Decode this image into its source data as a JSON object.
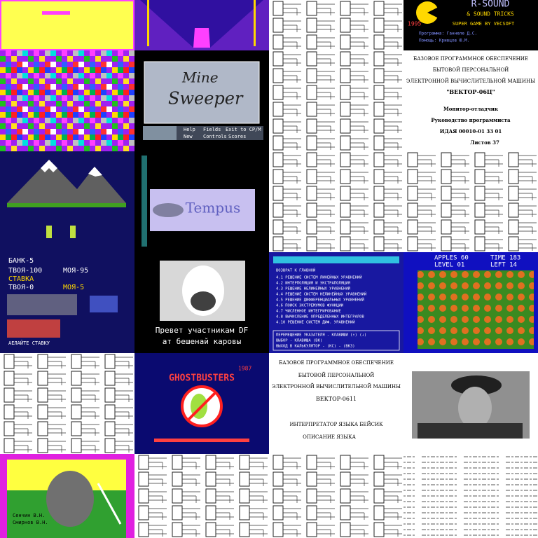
{
  "r_sound": [
    "R-SOUND",
    "& SOUND TRICKS",
    "1995",
    "SUPER GAME BY VECSOFT",
    "Программа: Ганнеле Д.С.",
    "Помощь: Кривцов Ю.М."
  ],
  "minesweeper": [
    "Mine",
    "Sweeper",
    "Help",
    "Fields",
    "Exit to CP/M",
    "New",
    "Controls",
    "Scores"
  ],
  "monitor_doc": [
    "БАЗОВОЕ ПРОГРАММНОЕ ОБЕСПЕЧЕНИЕ",
    "БЫТОВОЙ ПЕРСОНАЛЬНОЙ",
    "ЭЛЕКТРОННОЙ ВЫЧИСЛИТЕЛЬНОЙ МАШИНЫ",
    "\"ВЕКТОР-06Ц\"",
    "Монитор-отладчик",
    "Руководство программиста",
    "ИДАЯ 00010-01 33 01",
    "Листов 37"
  ],
  "tempus": [
    "Tempus"
  ],
  "bank_game": [
    "БАНК-5",
    "ТВОЯ-100",
    "МОЯ-95",
    "СТАВКА",
    "ТВОЯ-0",
    "МОЯ-5",
    "АЕЛАЙТЕ СТАВКУ"
  ],
  "cow": [
    "Превет участникам DF",
    "ат бешенай каровы"
  ],
  "math_menu": [
    "ВОЗВРАТ К ГЛАВНОЙ",
    "4.1 РЕШЕНИЕ СИСТЕМ ЛИНЕЙНЫХ УРАВНЕНИЙ",
    "4.2 ИНТЕРПОЛЯЦИЯ И ЭКСТРАПОЛЯЦИЯ",
    "4.3 РЕШЕНИЕ НЕЛИНЕЙНЫХ УРАВНЕНИЙ",
    "4.4 РЕШЕНИЕ СИСТЕМ НЕЛИНЕЙНЫХ УРАВНЕНИЙ",
    "4.5 РЕШЕНИЕ ДИФФЕРЕНЦИАЛЬНЫХ УРАВНЕНИЙ",
    "4.6 ПОИСК ЭКСТРЕМУМОВ ФУНКЦИИ",
    "4.7 ЧИСЛЕННОЕ ИНТЕГРИРОВАНИЕ",
    "4.8 ВЫЧИСЛЕНИЕ ОПРЕДЕЛЕННЫХ ИНТЕГРАЛОВ",
    "4.10 РЕШЕНИЕ СИСТЕМ ДИФ. УРАВНЕНИЙ",
    "ПЕРЕМЕЩЕНИЕ УКАЗАТЕЛЯ - КЛАВИШИ (↑) (↓)",
    "ВЫБОР - КЛАВИША (ВК)",
    "ВЫХОД В КАЛЬКУЛЯТОР - (КС) - (ВКЗ)"
  ],
  "apples": [
    "APPLES 60",
    "TIME 183",
    "LEVEL 01",
    "LEFT 14"
  ],
  "ghostbusters": [
    "1987",
    "GHOSTBUSTERS"
  ],
  "basic_doc": [
    "БАЗОВОЕ ПРОГРАММНОЕ ОБЕСПЕЧЕНИЕ",
    "БЫТОВОЙ ПЕРСОНАЛЬНОЙ",
    "ЭЛЕКТРОННОЙ ВЫЧИСЛИТЕЛЬНОЙ МАШИНЫ",
    "ВЕКТОР-0611",
    "ИНТЕРПРЕТАТОР ЯЗЫКА БЕЙСИК",
    "ОПИСАНИЕ ЯЗЫКА"
  ],
  "ninja": [
    "Сенчин В.Н.",
    "Смирнов В.Н."
  ]
}
